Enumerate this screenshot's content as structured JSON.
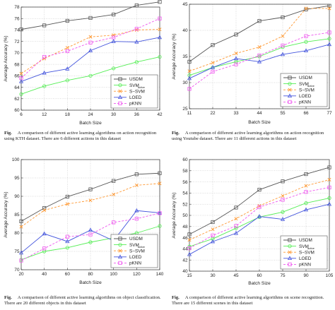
{
  "figures": [
    {
      "caption_label": "Fig.",
      "caption_text": "A comparison of different active learning algorithms on action recognition using KTH dataset. There are 6 different actions in this dataset",
      "chart_data": {
        "type": "line",
        "xlabel": "Batch Size",
        "ylabel": "Average Accuracy (%)",
        "x": [
          6,
          12,
          18,
          24,
          30,
          36,
          42
        ],
        "xticks": [
          "6",
          "12",
          "18",
          "24",
          "30",
          "36",
          "42"
        ],
        "xlim": [
          6,
          42
        ],
        "ylim": [
          60,
          78
        ],
        "yticks": [
          "60",
          "62",
          "64",
          "66",
          "68",
          "70",
          "72",
          "74",
          "76",
          "78"
        ],
        "legend_position": "bottom-right",
        "grid": true,
        "series": [
          {
            "name": "USDM",
            "sub": "",
            "color": "#555555",
            "marker": "square",
            "dash": "",
            "values": [
              74.1,
              74.8,
              75.6,
              76.1,
              76.7,
              78.3,
              78.9
            ]
          },
          {
            "name": "SVM",
            "sub": "active",
            "color": "#55ee55",
            "marker": "circle",
            "dash": "",
            "values": [
              62.8,
              64.2,
              65.2,
              66.0,
              67.3,
              68.4,
              69.3
            ]
          },
          {
            "name": "S−SVM",
            "sub": "",
            "color": "#ff9933",
            "marker": "x",
            "dash": "3,2",
            "values": [
              66.4,
              69.0,
              70.9,
              72.8,
              73.1,
              74.0,
              74.1
            ]
          },
          {
            "name": "LOED",
            "sub": "",
            "color": "#4455dd",
            "marker": "triangle",
            "dash": "",
            "values": [
              65.0,
              66.5,
              67.2,
              70.4,
              72.0,
              71.9,
              72.7
            ]
          },
          {
            "name": "pKNN",
            "sub": "",
            "color": "#ee55ee",
            "marker": "square",
            "dash": "3,2",
            "values": [
              65.6,
              69.3,
              70.3,
              71.8,
              72.7,
              74.2,
              76.0
            ]
          }
        ]
      }
    },
    {
      "caption_label": "Fig.",
      "caption_text": "A comparison of different active learning algorithms on action recognition using Youtube dataset. There are 11 different actions in this dataset",
      "chart_data": {
        "type": "line",
        "xlabel": "Batch Size",
        "ylabel": "Average Accuracy (%)",
        "x": [
          11,
          22,
          33,
          44,
          55,
          66,
          77
        ],
        "xticks": [
          "11",
          "22",
          "33",
          "44",
          "55",
          "66",
          "77"
        ],
        "xlim": [
          11,
          77
        ],
        "ylim": [
          25,
          45
        ],
        "yticks": [
          "25",
          "30",
          "35",
          "40",
          "45"
        ],
        "legend_position": "bottom-right",
        "grid": true,
        "series": [
          {
            "name": "USDM",
            "sub": "",
            "color": "#555555",
            "marker": "square",
            "dash": "",
            "values": [
              34.0,
              37.2,
              39.2,
              41.8,
              42.5,
              44.0,
              44.7
            ]
          },
          {
            "name": "SVM",
            "sub": "active",
            "color": "#55ee55",
            "marker": "circle",
            "dash": "",
            "values": [
              31.4,
              32.9,
              34.0,
              35.0,
              36.8,
              37.8,
              38.4
            ]
          },
          {
            "name": "S−SVM",
            "sub": "",
            "color": "#ff9933",
            "marker": "x",
            "dash": "3,2",
            "values": [
              32.2,
              33.8,
              35.6,
              36.8,
              38.9,
              44.2,
              44.2
            ]
          },
          {
            "name": "LOED",
            "sub": "",
            "color": "#4455dd",
            "marker": "triangle",
            "dash": "",
            "values": [
              30.8,
              32.9,
              34.6,
              34.0,
              35.4,
              36.1,
              37.3
            ]
          },
          {
            "name": "pKNN",
            "sub": "",
            "color": "#ee55ee",
            "marker": "square",
            "dash": "3,2",
            "values": [
              28.8,
              32.1,
              33.5,
              35.2,
              37.1,
              38.9,
              39.6
            ]
          }
        ]
      }
    },
    {
      "caption_label": "Fig.",
      "caption_text": "A comparison of different active learning algorithms on object classification. There are 20 different objects in this dataset",
      "chart_data": {
        "type": "line",
        "xlabel": "Batch Size",
        "ylabel": "Average Accuracy (%)",
        "x": [
          20,
          40,
          60,
          80,
          100,
          120,
          140
        ],
        "xticks": [
          "20",
          "40",
          "60",
          "80",
          "100",
          "120",
          "140"
        ],
        "xlim": [
          20,
          140
        ],
        "ylim": [
          70,
          100
        ],
        "yticks": [
          "70",
          "75",
          "80",
          "85",
          "90",
          "95",
          "100"
        ],
        "legend_position": "bottom-right",
        "grid": true,
        "series": [
          {
            "name": "USDM",
            "sub": "",
            "color": "#555555",
            "marker": "square",
            "dash": "",
            "values": [
              83.2,
              86.8,
              89.9,
              91.9,
              94.2,
              96.0,
              96.3
            ]
          },
          {
            "name": "SVM",
            "sub": "active",
            "color": "#55ee55",
            "marker": "circle",
            "dash": "",
            "values": [
              72.7,
              75.0,
              76.0,
              77.5,
              78.7,
              80.0,
              81.9
            ]
          },
          {
            "name": "S−SVM",
            "sub": "",
            "color": "#ff9933",
            "marker": "x",
            "dash": "3,2",
            "values": [
              81.7,
              86.2,
              87.9,
              88.9,
              90.5,
              93.0,
              93.5
            ]
          },
          {
            "name": "LOED",
            "sub": "",
            "color": "#4455dd",
            "marker": "triangle",
            "dash": "",
            "values": [
              74.6,
              79.8,
              77.7,
              80.8,
              77.9,
              86.1,
              85.5
            ]
          },
          {
            "name": "pKNN",
            "sub": "",
            "color": "#ee55ee",
            "marker": "square",
            "dash": "3,2",
            "values": [
              72.5,
              75.8,
              79.0,
              79.6,
              82.9,
              83.9,
              85.4
            ]
          }
        ]
      }
    },
    {
      "caption_label": "Fig.",
      "caption_text": "A comparison of different active learning algorithms on scene recognition. There are 15 different scenes in this dataset",
      "chart_data": {
        "type": "line",
        "xlabel": "Batch Size",
        "ylabel": "Average Accuracy (%)",
        "x": [
          15,
          30,
          45,
          60,
          75,
          90,
          105
        ],
        "xticks": [
          "15",
          "30",
          "45",
          "60",
          "75",
          "90",
          "105"
        ],
        "xlim": [
          15,
          105
        ],
        "ylim": [
          40,
          60
        ],
        "yticks": [
          "40",
          "42",
          "44",
          "46",
          "48",
          "50",
          "52",
          "54",
          "56",
          "58",
          "60"
        ],
        "legend_position": "bottom-right",
        "grid": true,
        "series": [
          {
            "name": "USDM",
            "sub": "",
            "color": "#555555",
            "marker": "square",
            "dash": "",
            "values": [
              46.6,
              48.8,
              51.4,
              54.6,
              56.1,
              57.4,
              58.6
            ]
          },
          {
            "name": "SVM",
            "sub": "active",
            "color": "#55ee55",
            "marker": "circle",
            "dash": "",
            "values": [
              44.4,
              45.8,
              47.7,
              49.7,
              50.6,
              52.2,
              53.1
            ]
          },
          {
            "name": "S−SVM",
            "sub": "",
            "color": "#ff9933",
            "marker": "x",
            "dash": "3,2",
            "values": [
              45.6,
              47.5,
              49.4,
              51.7,
              53.5,
              55.3,
              56.4
            ]
          },
          {
            "name": "LOED",
            "sub": "",
            "color": "#4455dd",
            "marker": "triangle",
            "dash": "",
            "values": [
              43.0,
              45.3,
              46.8,
              49.8,
              49.3,
              51.0,
              52.0
            ]
          },
          {
            "name": "pKNN",
            "sub": "",
            "color": "#ee55ee",
            "marker": "square",
            "dash": "3,2",
            "values": [
              44.1,
              46.4,
              48.1,
              51.5,
              52.8,
              54.2,
              55.0
            ]
          }
        ]
      }
    }
  ]
}
